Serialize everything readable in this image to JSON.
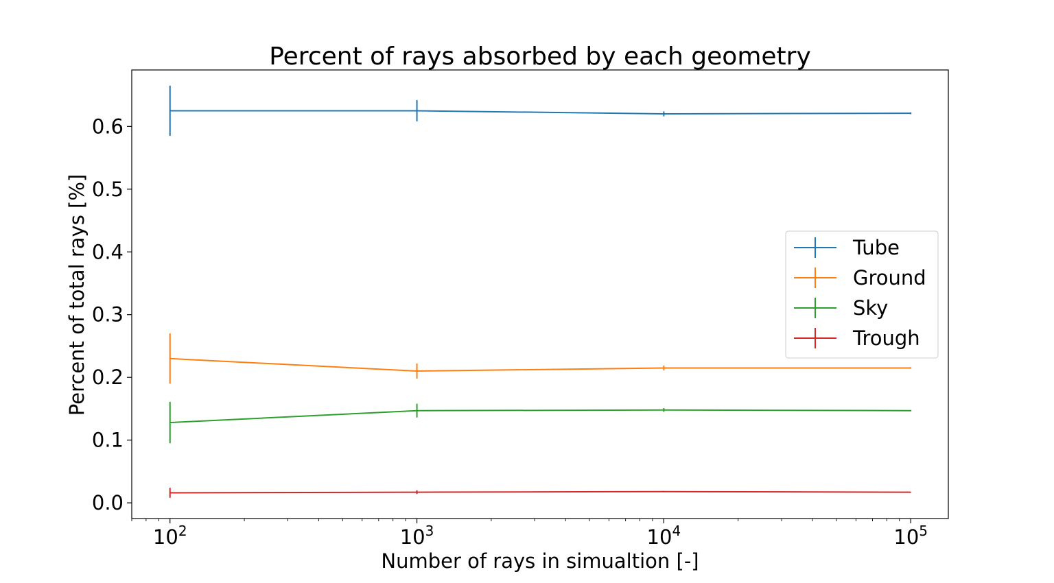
{
  "chart_data": {
    "type": "line",
    "title": "Percent of rays absorbed by each geometry",
    "xlabel": "Number of rays in simualtion [-]",
    "ylabel": "Percent of total rays [%]",
    "xscale": "log",
    "xlim": [
      70,
      142000
    ],
    "ylim": [
      -0.025,
      0.69
    ],
    "grid": false,
    "legend_position": "center-right",
    "x": [
      100,
      1000,
      10000,
      100000
    ],
    "x_tick_labels": [
      {
        "base": "10",
        "exp": "2"
      },
      {
        "base": "10",
        "exp": "3"
      },
      {
        "base": "10",
        "exp": "4"
      },
      {
        "base": "10",
        "exp": "5"
      }
    ],
    "y_ticks": [
      0.0,
      0.1,
      0.2,
      0.3,
      0.4,
      0.5,
      0.6
    ],
    "y_tick_labels": [
      "0.0",
      "0.1",
      "0.2",
      "0.3",
      "0.4",
      "0.5",
      "0.6"
    ],
    "series": [
      {
        "name": "Tube",
        "color": "#1f77b4",
        "values": [
          0.625,
          0.625,
          0.62,
          0.621
        ],
        "errors": [
          0.04,
          0.017,
          0.004,
          0.0015
        ]
      },
      {
        "name": "Ground",
        "color": "#ff7f0e",
        "values": [
          0.23,
          0.21,
          0.215,
          0.215
        ],
        "errors": [
          0.04,
          0.012,
          0.004,
          0.0012
        ]
      },
      {
        "name": "Sky",
        "color": "#2ca02c",
        "values": [
          0.128,
          0.147,
          0.148,
          0.147
        ],
        "errors": [
          0.033,
          0.011,
          0.003,
          0.001
        ]
      },
      {
        "name": "Trough",
        "color": "#d62728",
        "values": [
          0.016,
          0.017,
          0.018,
          0.017
        ],
        "errors": [
          0.008,
          0.003,
          0.001,
          0.0005
        ]
      }
    ]
  }
}
